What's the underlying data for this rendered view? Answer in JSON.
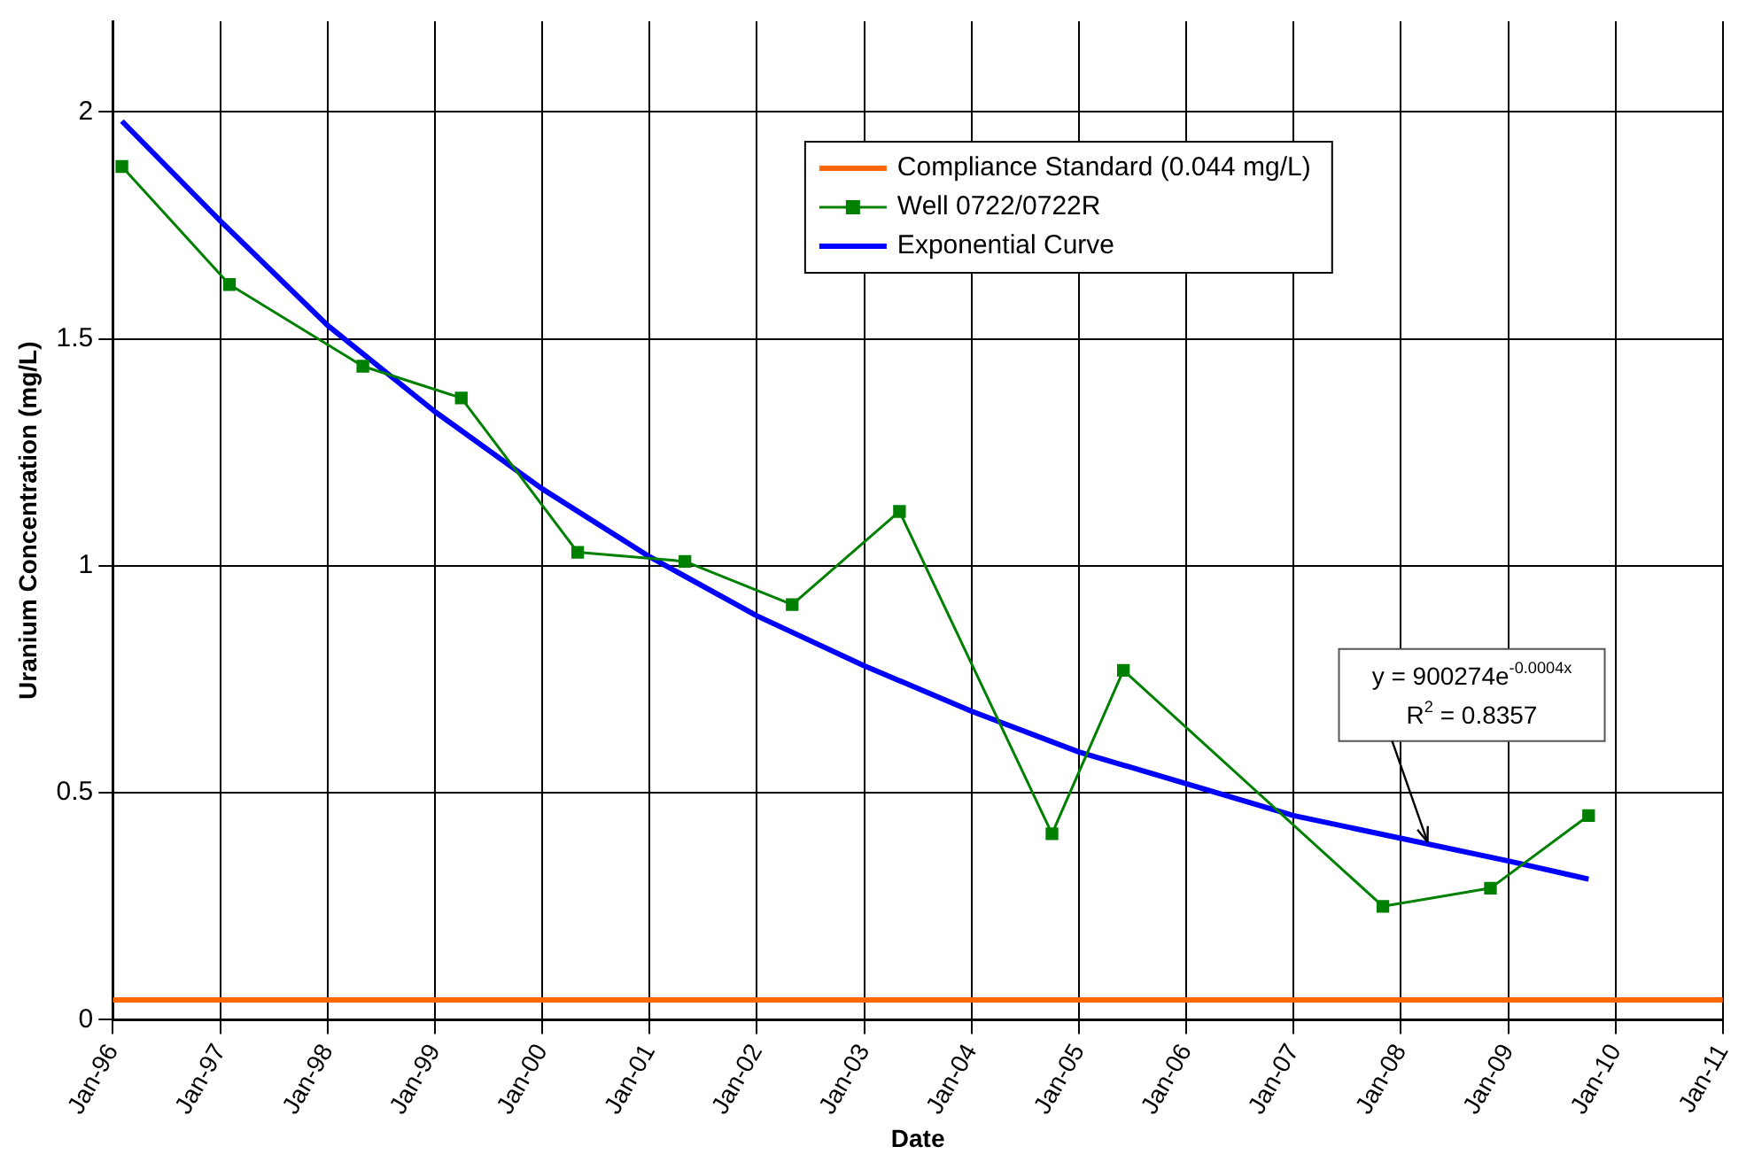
{
  "chart_data": {
    "type": "line",
    "xlabel": "Date",
    "ylabel": "Uranium Concentration (mg/L)",
    "xlim": [
      "1996-01",
      "2011-01"
    ],
    "xticks": [
      {
        "value": "1996-01",
        "label": "Jan-96"
      },
      {
        "value": "1997-01",
        "label": "Jan-97"
      },
      {
        "value": "1998-01",
        "label": "Jan-98"
      },
      {
        "value": "1999-01",
        "label": "Jan-99"
      },
      {
        "value": "2000-01",
        "label": "Jan-00"
      },
      {
        "value": "2001-01",
        "label": "Jan-01"
      },
      {
        "value": "2002-01",
        "label": "Jan-02"
      },
      {
        "value": "2003-01",
        "label": "Jan-03"
      },
      {
        "value": "2004-01",
        "label": "Jan-04"
      },
      {
        "value": "2005-01",
        "label": "Jan-05"
      },
      {
        "value": "2006-01",
        "label": "Jan-06"
      },
      {
        "value": "2007-01",
        "label": "Jan-07"
      },
      {
        "value": "2008-01",
        "label": "Jan-08"
      },
      {
        "value": "2009-01",
        "label": "Jan-09"
      },
      {
        "value": "2010-01",
        "label": "Jan-10"
      },
      {
        "value": "2011-01",
        "label": "Jan-11"
      }
    ],
    "ylim": [
      0,
      2.2
    ],
    "yticks": [
      0,
      0.5,
      1,
      1.5,
      2
    ],
    "grid": true,
    "legend": "top right",
    "series": [
      {
        "name": "Compliance Standard (0.044 mg/L)",
        "color": "#ff6600",
        "marker": "none",
        "x": [
          "1996-01",
          "2011-01"
        ],
        "values": [
          0.044,
          0.044
        ]
      },
      {
        "name": "Well 0722/0722R",
        "color": "#008000",
        "marker": "square",
        "x": [
          "1996-02",
          "1997-02",
          "1998-05",
          "1999-04",
          "2000-05",
          "2001-05",
          "2002-05",
          "2003-05",
          "2004-10",
          "2005-06",
          "2007-11",
          "2008-11",
          "2009-10"
        ],
        "values": [
          1.88,
          1.62,
          1.44,
          1.37,
          1.03,
          1.01,
          0.915,
          1.12,
          0.41,
          0.77,
          0.25,
          0.29,
          0.45
        ]
      },
      {
        "name": "Exponential Curve",
        "color": "#0000ff",
        "marker": "none",
        "x": [
          "1996-02",
          "1997-01",
          "1998-01",
          "1999-01",
          "2000-01",
          "2001-01",
          "2002-01",
          "2003-01",
          "2004-01",
          "2005-01",
          "2006-01",
          "2007-01",
          "2008-01",
          "2009-01",
          "2009-10"
        ],
        "values": [
          1.98,
          1.76,
          1.53,
          1.34,
          1.17,
          1.02,
          0.89,
          0.78,
          0.68,
          0.59,
          0.52,
          0.45,
          0.4,
          0.35,
          0.31
        ]
      }
    ],
    "annotations": [
      "y = 900274e$^{-0.0004x}$",
      {
        "text": "R$^{2}$ = 0.8357",
        "x": "2008-04",
        "y": 0.38
      }
    ]
  }
}
